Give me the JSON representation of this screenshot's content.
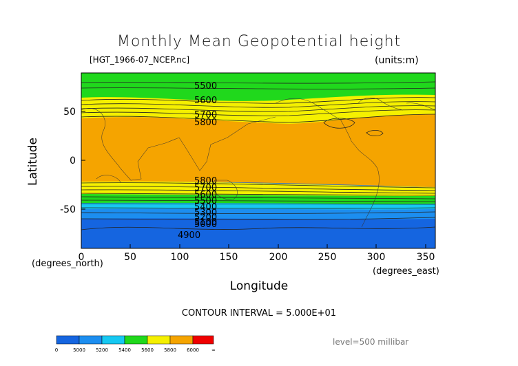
{
  "title": "Monthly Mean Geopotential height",
  "file_label": "[HGT_1966-07_NCEP.nc]",
  "units_label": "(units:m)",
  "x_axis": {
    "label": "Longitude",
    "unit_label": "(degrees_east)",
    "ticks": [
      "0",
      "50",
      "100",
      "150",
      "200",
      "250",
      "300",
      "350"
    ],
    "range": [
      0,
      360
    ]
  },
  "y_axis": {
    "label": "Latitude",
    "unit_label": "(degrees_north)",
    "ticks": [
      "50",
      "0",
      "-50"
    ],
    "range": [
      -90,
      90
    ]
  },
  "contour_interval": "CONTOUR INTERVAL = 5.000E+01",
  "level": "level=500 millibar",
  "contour_labels": [
    "5500",
    "5600",
    "5700",
    "5800",
    "5800",
    "5700",
    "5600",
    "5500",
    "5400",
    "5300",
    "5200",
    "5100",
    "5000",
    "4900"
  ],
  "colorbar": {
    "labels": [
      "0",
      "5000",
      "5200",
      "5400",
      "5600",
      "5800",
      "6000",
      "∞"
    ],
    "colors": [
      "#1565e0",
      "#1c8ef0",
      "#16c8f2",
      "#20d81c",
      "#f5f000",
      "#f5a400",
      "#f00000"
    ]
  },
  "band_colors": {
    "high_lat_cold": "#1565e0",
    "mid_blue": "#1c8ef0",
    "cyan": "#16c8f2",
    "green": "#20d81c",
    "yellow": "#f5f000",
    "orange": "#f5a400"
  }
}
